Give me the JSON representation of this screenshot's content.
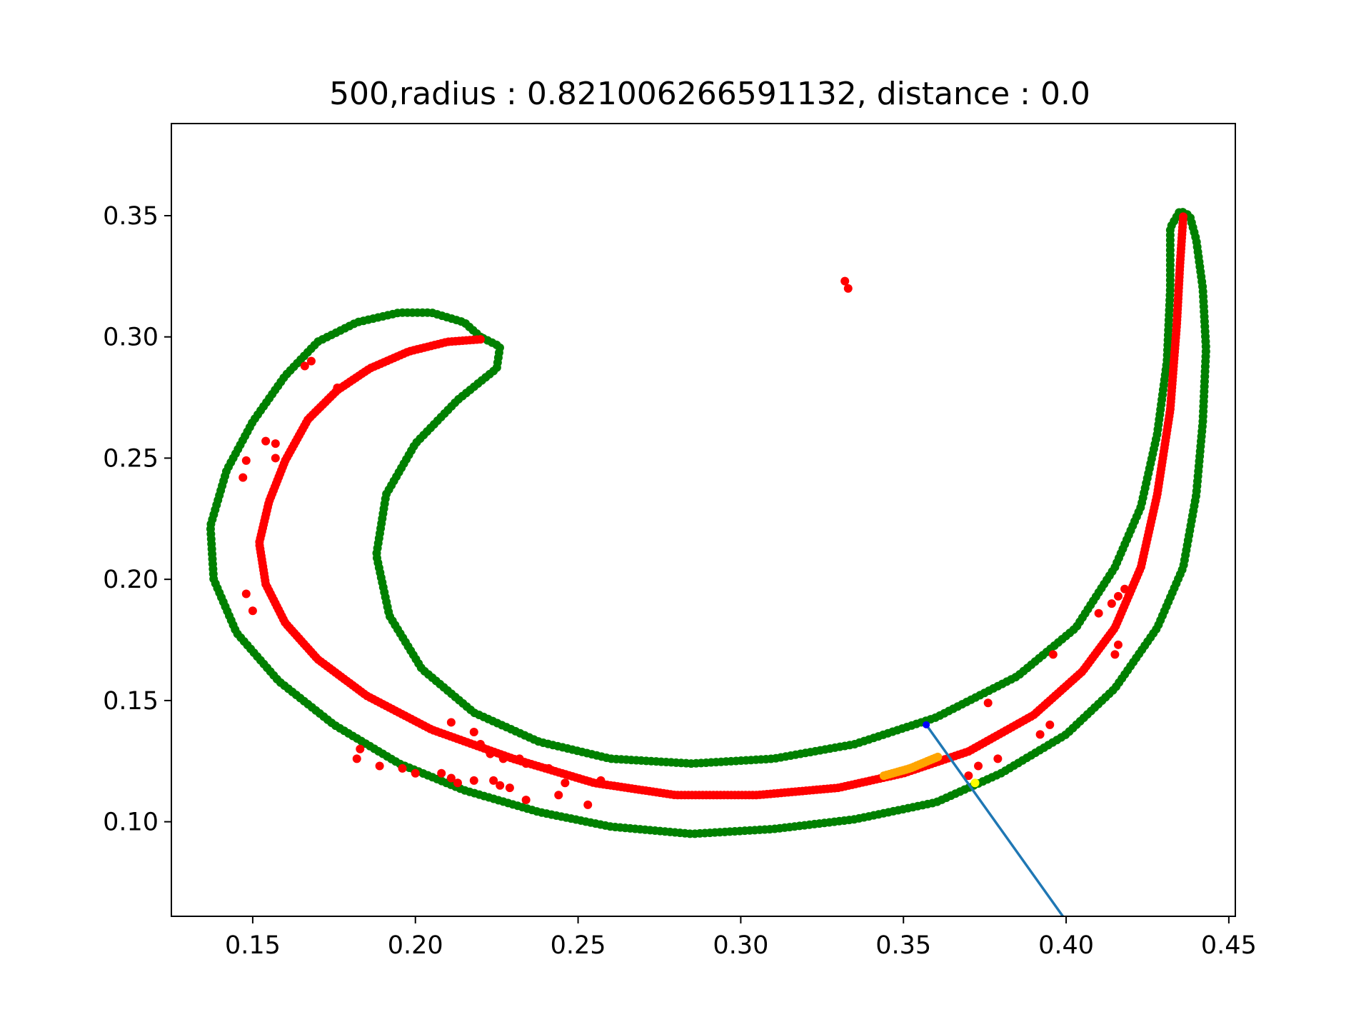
{
  "chart_data": {
    "type": "scatter",
    "title": "500,radius : 0.821006266591132, distance : 0.0",
    "xlabel": "",
    "ylabel": "",
    "xlim": [
      0.125,
      0.452
    ],
    "ylim": [
      0.061,
      0.388
    ],
    "grid": false,
    "legend": "none",
    "xticks": [
      {
        "value": 0.15,
        "label": "0.15"
      },
      {
        "value": 0.2,
        "label": "0.20"
      },
      {
        "value": 0.25,
        "label": "0.25"
      },
      {
        "value": 0.3,
        "label": "0.30"
      },
      {
        "value": 0.35,
        "label": "0.35"
      },
      {
        "value": 0.4,
        "label": "0.40"
      },
      {
        "value": 0.45,
        "label": "0.45"
      }
    ],
    "yticks": [
      {
        "value": 0.1,
        "label": "0.10"
      },
      {
        "value": 0.15,
        "label": "0.15"
      },
      {
        "value": 0.2,
        "label": "0.20"
      },
      {
        "value": 0.25,
        "label": "0.25"
      },
      {
        "value": 0.3,
        "label": "0.30"
      },
      {
        "value": 0.35,
        "label": "0.35"
      }
    ],
    "colors": {
      "outer_boundary": "#008000",
      "centerline": "#ff0000",
      "scattered": "#ff0000",
      "highlight_segment": "#ffa500",
      "highlight_point": "#ffff00",
      "line": "#1f77b4",
      "line_start_marker": "#0000ff"
    },
    "outer_boundary_path": [
      [
        0.22,
        0.3
      ],
      [
        0.215,
        0.306
      ],
      [
        0.205,
        0.31
      ],
      [
        0.195,
        0.31
      ],
      [
        0.182,
        0.306
      ],
      [
        0.17,
        0.298
      ],
      [
        0.16,
        0.284
      ],
      [
        0.15,
        0.265
      ],
      [
        0.142,
        0.245
      ],
      [
        0.137,
        0.222
      ],
      [
        0.138,
        0.2
      ],
      [
        0.145,
        0.178
      ],
      [
        0.158,
        0.158
      ],
      [
        0.175,
        0.14
      ],
      [
        0.195,
        0.124
      ],
      [
        0.215,
        0.113
      ],
      [
        0.238,
        0.104
      ],
      [
        0.26,
        0.098
      ],
      [
        0.285,
        0.095
      ],
      [
        0.31,
        0.097
      ],
      [
        0.335,
        0.101
      ],
      [
        0.36,
        0.108
      ],
      [
        0.38,
        0.12
      ],
      [
        0.4,
        0.136
      ],
      [
        0.415,
        0.155
      ],
      [
        0.428,
        0.18
      ],
      [
        0.436,
        0.205
      ],
      [
        0.44,
        0.235
      ],
      [
        0.442,
        0.265
      ],
      [
        0.443,
        0.295
      ],
      [
        0.442,
        0.32
      ],
      [
        0.44,
        0.34
      ],
      [
        0.438,
        0.35
      ],
      [
        0.435,
        0.352
      ],
      [
        0.432,
        0.345
      ],
      [
        0.432,
        0.32
      ],
      [
        0.431,
        0.29
      ],
      [
        0.428,
        0.26
      ],
      [
        0.423,
        0.23
      ],
      [
        0.415,
        0.205
      ],
      [
        0.403,
        0.18
      ],
      [
        0.385,
        0.16
      ],
      [
        0.36,
        0.143
      ],
      [
        0.335,
        0.132
      ],
      [
        0.31,
        0.126
      ],
      [
        0.285,
        0.124
      ],
      [
        0.26,
        0.126
      ],
      [
        0.238,
        0.133
      ],
      [
        0.218,
        0.145
      ],
      [
        0.202,
        0.163
      ],
      [
        0.192,
        0.185
      ],
      [
        0.188,
        0.21
      ],
      [
        0.191,
        0.235
      ],
      [
        0.2,
        0.256
      ],
      [
        0.213,
        0.274
      ],
      [
        0.225,
        0.287
      ],
      [
        0.226,
        0.296
      ],
      [
        0.22,
        0.3
      ]
    ],
    "centerline_path": [
      [
        0.22,
        0.299
      ],
      [
        0.21,
        0.298
      ],
      [
        0.198,
        0.294
      ],
      [
        0.186,
        0.287
      ],
      [
        0.176,
        0.278
      ],
      [
        0.167,
        0.266
      ],
      [
        0.16,
        0.249
      ],
      [
        0.155,
        0.232
      ],
      [
        0.152,
        0.215
      ],
      [
        0.154,
        0.198
      ],
      [
        0.16,
        0.182
      ],
      [
        0.17,
        0.167
      ],
      [
        0.185,
        0.152
      ],
      [
        0.205,
        0.138
      ],
      [
        0.23,
        0.126
      ],
      [
        0.255,
        0.116
      ],
      [
        0.28,
        0.111
      ],
      [
        0.305,
        0.111
      ],
      [
        0.33,
        0.114
      ],
      [
        0.35,
        0.12
      ],
      [
        0.37,
        0.129
      ],
      [
        0.39,
        0.144
      ],
      [
        0.405,
        0.162
      ],
      [
        0.415,
        0.18
      ],
      [
        0.423,
        0.205
      ],
      [
        0.428,
        0.235
      ],
      [
        0.432,
        0.27
      ],
      [
        0.434,
        0.305
      ],
      [
        0.435,
        0.33
      ],
      [
        0.436,
        0.35
      ]
    ],
    "highlight_segment_path": [
      [
        0.344,
        0.119
      ],
      [
        0.352,
        0.122
      ],
      [
        0.361,
        0.127
      ]
    ],
    "scattered_points": [
      [
        0.332,
        0.323
      ],
      [
        0.333,
        0.32
      ],
      [
        0.166,
        0.288
      ],
      [
        0.168,
        0.29
      ],
      [
        0.176,
        0.279
      ],
      [
        0.154,
        0.257
      ],
      [
        0.157,
        0.256
      ],
      [
        0.148,
        0.249
      ],
      [
        0.157,
        0.25
      ],
      [
        0.147,
        0.242
      ],
      [
        0.148,
        0.194
      ],
      [
        0.15,
        0.187
      ],
      [
        0.183,
        0.13
      ],
      [
        0.182,
        0.126
      ],
      [
        0.189,
        0.123
      ],
      [
        0.196,
        0.122
      ],
      [
        0.2,
        0.12
      ],
      [
        0.211,
        0.141
      ],
      [
        0.218,
        0.137
      ],
      [
        0.22,
        0.132
      ],
      [
        0.223,
        0.128
      ],
      [
        0.227,
        0.126
      ],
      [
        0.232,
        0.126
      ],
      [
        0.234,
        0.124
      ],
      [
        0.241,
        0.122
      ],
      [
        0.208,
        0.12
      ],
      [
        0.211,
        0.118
      ],
      [
        0.213,
        0.116
      ],
      [
        0.218,
        0.117
      ],
      [
        0.224,
        0.117
      ],
      [
        0.226,
        0.115
      ],
      [
        0.229,
        0.114
      ],
      [
        0.234,
        0.109
      ],
      [
        0.244,
        0.111
      ],
      [
        0.246,
        0.116
      ],
      [
        0.253,
        0.107
      ],
      [
        0.257,
        0.117
      ],
      [
        0.37,
        0.119
      ],
      [
        0.373,
        0.123
      ],
      [
        0.376,
        0.149
      ],
      [
        0.379,
        0.126
      ],
      [
        0.392,
        0.136
      ],
      [
        0.395,
        0.14
      ],
      [
        0.396,
        0.169
      ],
      [
        0.41,
        0.186
      ],
      [
        0.414,
        0.19
      ],
      [
        0.416,
        0.193
      ],
      [
        0.418,
        0.196
      ],
      [
        0.415,
        0.169
      ],
      [
        0.416,
        0.173
      ]
    ],
    "highlight_point": [
      0.372,
      0.116
    ],
    "line_segment": [
      [
        0.357,
        0.14
      ],
      [
        0.399,
        0.061
      ]
    ]
  }
}
